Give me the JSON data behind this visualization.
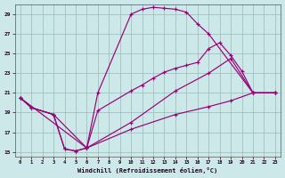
{
  "xlabel": "Windchill (Refroidissement éolien,°C)",
  "bg_color": "#cce8e8",
  "line_color": "#990077",
  "grid_color": "#99bbbb",
  "xlim": [
    -0.5,
    23.5
  ],
  "ylim": [
    14.5,
    30.0
  ],
  "xticks": [
    0,
    1,
    2,
    3,
    4,
    5,
    6,
    7,
    8,
    9,
    10,
    11,
    12,
    13,
    14,
    15,
    16,
    17,
    18,
    19,
    20,
    21,
    22,
    23
  ],
  "yticks": [
    15,
    17,
    19,
    21,
    23,
    25,
    27,
    29
  ],
  "line1_x": [
    0,
    1,
    3,
    4,
    5,
    6,
    7,
    10,
    11,
    12,
    13,
    14,
    15,
    16,
    17,
    21,
    23
  ],
  "line1_y": [
    20.5,
    19.5,
    18.8,
    15.3,
    15.1,
    15.4,
    21.0,
    29.0,
    29.5,
    29.7,
    29.6,
    29.5,
    29.2,
    28.0,
    27.0,
    21.0,
    21.0
  ],
  "line2_x": [
    0,
    1,
    3,
    4,
    5,
    6,
    7,
    10,
    11,
    12,
    13,
    14,
    15,
    16,
    17,
    18,
    19,
    20,
    21,
    23
  ],
  "line2_y": [
    20.5,
    19.5,
    18.8,
    15.3,
    15.1,
    15.4,
    19.2,
    21.2,
    21.8,
    22.5,
    23.1,
    23.5,
    23.8,
    24.1,
    25.5,
    26.1,
    24.8,
    23.2,
    21.0,
    21.0
  ],
  "line3_x": [
    0,
    1,
    3,
    6,
    10,
    14,
    17,
    19,
    21,
    23
  ],
  "line3_y": [
    20.5,
    19.5,
    18.8,
    15.4,
    17.3,
    18.8,
    19.6,
    20.2,
    21.0,
    21.0
  ],
  "line4_x": [
    0,
    6,
    10,
    14,
    17,
    19,
    21,
    23
  ],
  "line4_y": [
    20.5,
    15.4,
    18.0,
    21.2,
    23.0,
    24.5,
    21.0,
    21.0
  ]
}
